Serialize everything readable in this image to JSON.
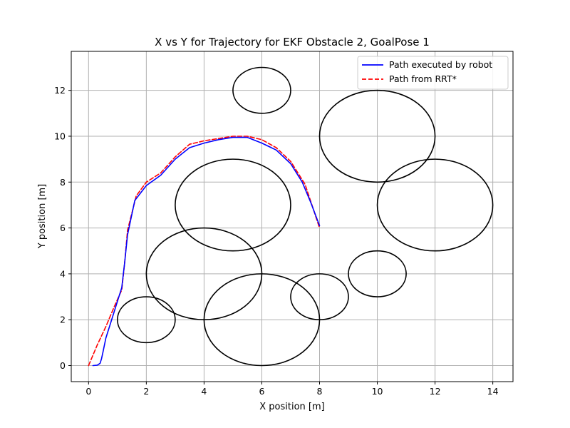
{
  "chart_data": {
    "type": "line",
    "title": "X vs Y for Trajectory for EKF Obstacle 2, GoalPose 1",
    "xlabel": "X position [m]",
    "ylabel": "Y position [m]",
    "xlim": [
      -0.6,
      14.7
    ],
    "ylim": [
      -0.7,
      13.7
    ],
    "xticks": [
      0,
      2,
      4,
      6,
      8,
      10,
      12,
      14
    ],
    "yticks": [
      0,
      2,
      4,
      6,
      8,
      10,
      12
    ],
    "grid": true,
    "legend_placement": "top-right",
    "series": [
      {
        "name": "Path executed by robot",
        "color": "#0000ff",
        "style": "solid",
        "x": [
          0.15,
          0.3,
          0.4,
          0.45,
          0.5,
          0.6,
          0.8,
          1.0,
          1.15,
          1.25,
          1.35,
          1.6,
          2.0,
          2.5,
          3.0,
          3.5,
          4.0,
          4.5,
          5.0,
          5.5,
          6.0,
          6.5,
          7.0,
          7.4,
          7.7,
          8.0
        ],
        "y": [
          0.0,
          0.02,
          0.1,
          0.3,
          0.6,
          1.2,
          2.0,
          2.8,
          3.4,
          4.5,
          5.7,
          7.2,
          7.85,
          8.3,
          9.0,
          9.5,
          9.7,
          9.85,
          9.95,
          9.95,
          9.7,
          9.4,
          8.8,
          8.0,
          7.1,
          6.1
        ]
      },
      {
        "name": "Path from RRT*",
        "color": "#ff0000",
        "style": "dashed",
        "x": [
          0.0,
          0.3,
          0.6,
          0.9,
          1.15,
          1.25,
          1.35,
          1.65,
          2.0,
          2.5,
          3.0,
          3.5,
          4.0,
          4.5,
          5.0,
          5.5,
          6.0,
          6.5,
          7.0,
          7.5,
          8.0
        ],
        "y": [
          0.0,
          0.9,
          1.7,
          2.6,
          3.3,
          4.5,
          5.9,
          7.4,
          8.0,
          8.4,
          9.1,
          9.65,
          9.8,
          9.9,
          10.0,
          10.0,
          9.85,
          9.5,
          8.9,
          7.9,
          6.0
        ]
      }
    ],
    "obstacles": [
      {
        "cx": 6,
        "cy": 12,
        "rx": 1,
        "ry": 1
      },
      {
        "cx": 10,
        "cy": 10,
        "rx": 2,
        "ry": 2
      },
      {
        "cx": 5,
        "cy": 7,
        "rx": 2,
        "ry": 2
      },
      {
        "cx": 12,
        "cy": 7,
        "rx": 2,
        "ry": 2
      },
      {
        "cx": 4,
        "cy": 4,
        "rx": 2,
        "ry": 2
      },
      {
        "cx": 10,
        "cy": 4,
        "rx": 1,
        "ry": 1
      },
      {
        "cx": 6,
        "cy": 2,
        "rx": 2,
        "ry": 2
      },
      {
        "cx": 8,
        "cy": 3,
        "rx": 1,
        "ry": 1
      },
      {
        "cx": 2,
        "cy": 2,
        "rx": 1,
        "ry": 1
      }
    ],
    "obstacle_color": "#000000",
    "grid_color": "#b0b0b0"
  }
}
